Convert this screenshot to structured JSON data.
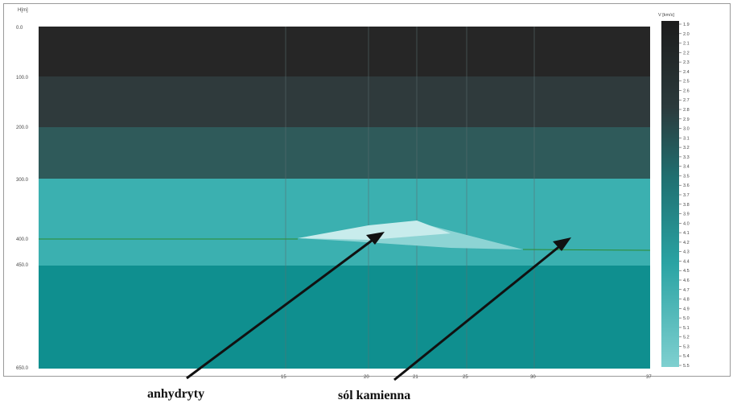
{
  "axis": {
    "y_unit": "H[m]",
    "y_ticks": [
      "0.0",
      "100.0",
      "200.0",
      "300.0",
      "400.0",
      "450.0",
      "650.0"
    ],
    "x_ticks": [
      "15",
      "20",
      "21",
      "25",
      "30",
      "37"
    ]
  },
  "colorbar": {
    "unit": "V [km/s]",
    "ticks": [
      "1.9",
      "2.0",
      "2.1",
      "2.2",
      "2.3",
      "2.4",
      "2.5",
      "2.6",
      "2.7",
      "2.8",
      "2.9",
      "3.0",
      "3.1",
      "3.2",
      "3.3",
      "3.4",
      "3.5",
      "3.6",
      "3.7",
      "3.8",
      "3.9",
      "4.0",
      "4.1",
      "4.2",
      "4.3",
      "4.4",
      "4.5",
      "4.6",
      "4.7",
      "4.8",
      "4.9",
      "5.0",
      "5.1",
      "5.2",
      "5.3",
      "5.4",
      "5.5"
    ],
    "color_top": "#1c1c1c",
    "color_bottom": "#7fd0d0"
  },
  "layers": [
    {
      "color": "#262626"
    },
    {
      "color": "#2f3a3c"
    },
    {
      "color": "#2f5a5a"
    },
    {
      "color": "#3bb0b0"
    },
    {
      "color": "#0f8f8f"
    }
  ],
  "bodies": {
    "anhydrite_color": "#c8ecec",
    "rock_salt_color": "#8dd4d4"
  },
  "annotations": {
    "anhydrite": "anhydryty",
    "rock_salt": "sól kamienna"
  }
}
